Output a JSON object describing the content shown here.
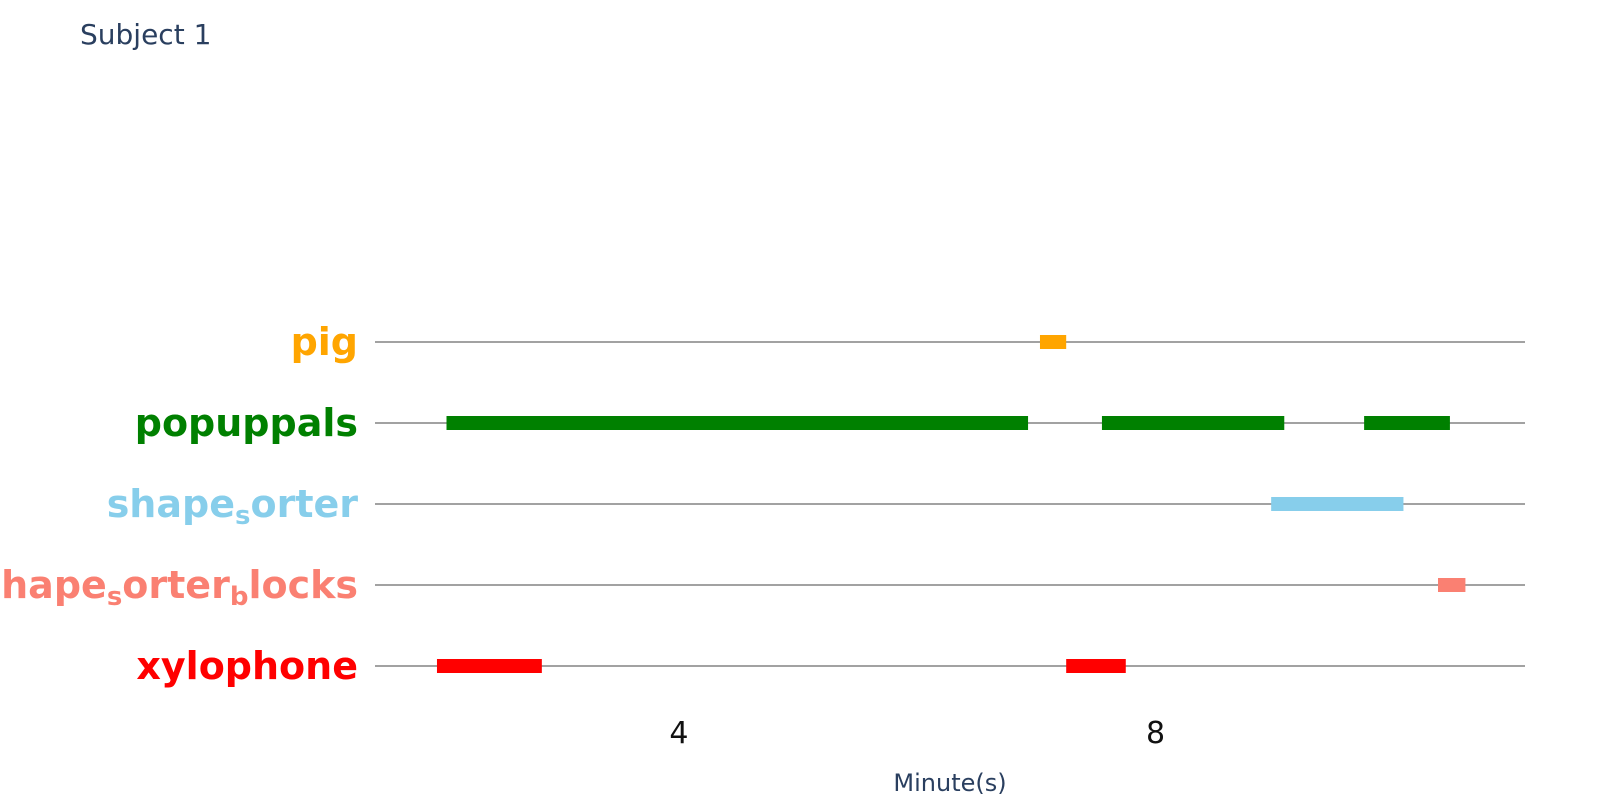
{
  "chart_data": {
    "type": "timeline",
    "title": "Subject 1",
    "xlabel": "Minute(s)",
    "ylabel": "",
    "xlim": [
      1.45,
      11.1
    ],
    "x_ticks": [
      4,
      8
    ],
    "x_tick_labels": [
      "4",
      "8"
    ],
    "grid": false,
    "legend": "none",
    "series": [
      {
        "name": "pig",
        "label_parts": [
          {
            "text": "pig",
            "sub": false
          }
        ],
        "color": "#FFA500",
        "segments": [
          [
            7.03,
            7.25
          ]
        ]
      },
      {
        "name": "popuppals",
        "label_parts": [
          {
            "text": "popuppals",
            "sub": false
          }
        ],
        "color": "#008000",
        "segments": [
          [
            2.05,
            6.93
          ],
          [
            7.55,
            9.08
          ],
          [
            9.75,
            10.47
          ]
        ]
      },
      {
        "name": "shape_sorter",
        "label_parts": [
          {
            "text": "shape",
            "sub": false
          },
          {
            "text": "s",
            "sub": true
          },
          {
            "text": "orter",
            "sub": false
          }
        ],
        "color": "#87CEEB",
        "segments": [
          [
            8.97,
            10.08
          ]
        ]
      },
      {
        "name": "shape_sorter_blocks",
        "label_parts": [
          {
            "text": "shape",
            "sub": false
          },
          {
            "text": "s",
            "sub": true
          },
          {
            "text": "orter",
            "sub": false
          },
          {
            "text": "b",
            "sub": true
          },
          {
            "text": "locks",
            "sub": false
          }
        ],
        "color": "#FA8072",
        "segments": [
          [
            10.37,
            10.6
          ]
        ]
      },
      {
        "name": "xylophone",
        "label_parts": [
          {
            "text": "xylophone",
            "sub": false
          }
        ],
        "color": "#FF0000",
        "segments": [
          [
            1.97,
            2.85
          ],
          [
            7.25,
            7.75
          ]
        ]
      }
    ]
  }
}
